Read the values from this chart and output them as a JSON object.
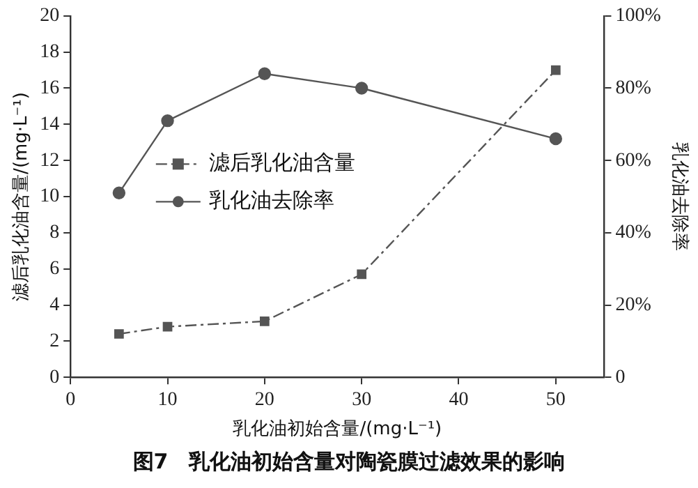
{
  "chart_data": {
    "type": "line",
    "xlabel": "乳化油初始含量/(mg·L⁻¹)",
    "ylabel": "滤后乳化油含量/(mg·L⁻¹)",
    "y2label": "乳化油去除率",
    "x": [
      5,
      10,
      20,
      30,
      50
    ],
    "series": [
      {
        "name": "滤后乳化油含量",
        "color": "#555555",
        "values": [
          2.4,
          2.8,
          3.1,
          5.7,
          17.0
        ],
        "marker": "square",
        "line_style": "dashed"
      },
      {
        "name": "乳化油去除率",
        "color": "#555555",
        "values": [
          51,
          71,
          84,
          80,
          66
        ],
        "marker": "circle",
        "line_style": "solid",
        "axis": "y2"
      }
    ],
    "xlim": [
      0,
      55
    ],
    "xticks": [
      0,
      10,
      20,
      30,
      40,
      50
    ],
    "ylim": [
      0,
      20
    ],
    "yticks": [
      0,
      2,
      4,
      6,
      8,
      10,
      12,
      14,
      16,
      18,
      20
    ],
    "y2lim": [
      0,
      100
    ],
    "y2ticks": [
      0,
      {
        "value": 20,
        "label": "20%"
      },
      {
        "value": 40,
        "label": "40%"
      },
      {
        "value": 60,
        "label": "60%"
      },
      {
        "value": 80,
        "label": "80%"
      },
      {
        "value": 100,
        "label": "100%"
      }
    ],
    "grid": false,
    "legend": "left",
    "annotations": [
      "图7　乳化油初始含量对陶瓷膜过滤效果的影响"
    ]
  }
}
